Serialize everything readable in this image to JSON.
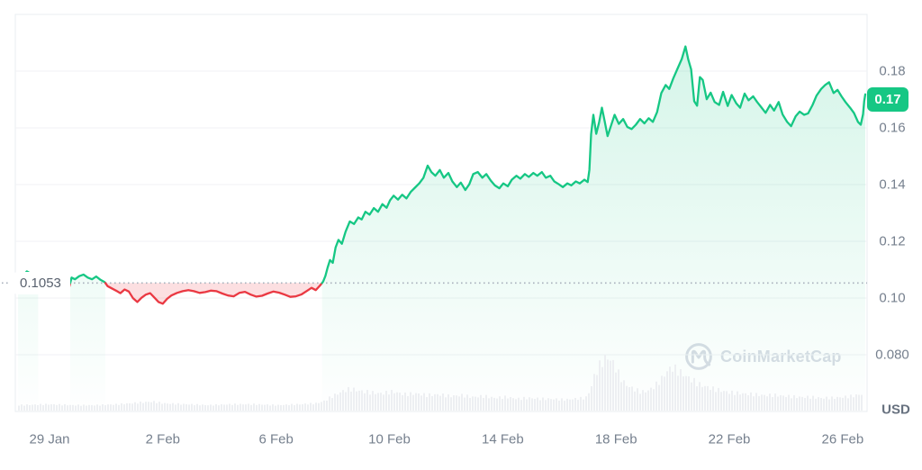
{
  "watermark": "CoinMarketCap",
  "chart_data": {
    "type": "area",
    "title": "",
    "baseline": {
      "value": 0.1053,
      "label": "0.1053"
    },
    "current_price": {
      "value": 0.17,
      "label": "0.17"
    },
    "y_axis": {
      "unit_label": "USD",
      "range": [
        0.06,
        0.2
      ],
      "ticks": [
        {
          "label": "0.18",
          "value": 0.18
        },
        {
          "label": "0.16",
          "value": 0.16
        },
        {
          "label": "0.14",
          "value": 0.14
        },
        {
          "label": "0.12",
          "value": 0.12
        },
        {
          "label": "0.10",
          "value": 0.1
        },
        {
          "label": "0.080",
          "value": 0.08
        }
      ]
    },
    "x_axis": {
      "ticks": [
        {
          "label": "29 Jan",
          "day": 0
        },
        {
          "label": "2 Feb",
          "day": 4
        },
        {
          "label": "6 Feb",
          "day": 8
        },
        {
          "label": "10 Feb",
          "day": 12
        },
        {
          "label": "14 Feb",
          "day": 16
        },
        {
          "label": "18 Feb",
          "day": 20
        },
        {
          "label": "22 Feb",
          "day": 24
        },
        {
          "label": "26 Feb",
          "day": 28
        }
      ]
    },
    "series": [
      {
        "name": "price_usd",
        "points": [
          [
            -1.11,
            0.1053
          ],
          [
            -1.0,
            0.1063
          ],
          [
            -0.9,
            0.1082
          ],
          [
            -0.8,
            0.1094
          ],
          [
            -0.7,
            0.1088
          ],
          [
            -0.6,
            0.1071
          ],
          [
            -0.5,
            0.1058
          ],
          [
            -0.4,
            0.1053
          ],
          [
            -0.2,
            0.1046
          ],
          [
            0.0,
            0.1038
          ],
          [
            0.2,
            0.103
          ],
          [
            0.4,
            0.1025
          ],
          [
            0.6,
            0.1026
          ],
          [
            0.7,
            0.104
          ],
          [
            0.78,
            0.1072
          ],
          [
            0.9,
            0.1066
          ],
          [
            1.05,
            0.1077
          ],
          [
            1.2,
            0.1083
          ],
          [
            1.35,
            0.1072
          ],
          [
            1.5,
            0.1066
          ],
          [
            1.65,
            0.1076
          ],
          [
            1.8,
            0.1064
          ],
          [
            1.95,
            0.1056
          ],
          [
            2.05,
            0.1042
          ],
          [
            2.2,
            0.1034
          ],
          [
            2.35,
            0.1026
          ],
          [
            2.5,
            0.1017
          ],
          [
            2.65,
            0.103
          ],
          [
            2.8,
            0.1023
          ],
          [
            2.95,
            0.0999
          ],
          [
            3.1,
            0.0986
          ],
          [
            3.25,
            0.1001
          ],
          [
            3.4,
            0.1012
          ],
          [
            3.55,
            0.1017
          ],
          [
            3.7,
            0.1002
          ],
          [
            3.85,
            0.0986
          ],
          [
            4.0,
            0.098
          ],
          [
            4.15,
            0.0997
          ],
          [
            4.3,
            0.1009
          ],
          [
            4.5,
            0.1018
          ],
          [
            4.7,
            0.1024
          ],
          [
            4.9,
            0.1028
          ],
          [
            5.1,
            0.1024
          ],
          [
            5.3,
            0.1018
          ],
          [
            5.5,
            0.1021
          ],
          [
            5.7,
            0.1026
          ],
          [
            5.9,
            0.1024
          ],
          [
            6.1,
            0.1016
          ],
          [
            6.3,
            0.1009
          ],
          [
            6.5,
            0.1006
          ],
          [
            6.7,
            0.1018
          ],
          [
            6.9,
            0.1022
          ],
          [
            7.1,
            0.1012
          ],
          [
            7.3,
            0.1005
          ],
          [
            7.5,
            0.1008
          ],
          [
            7.7,
            0.1016
          ],
          [
            7.9,
            0.1023
          ],
          [
            8.1,
            0.1019
          ],
          [
            8.3,
            0.1012
          ],
          [
            8.5,
            0.1004
          ],
          [
            8.7,
            0.1006
          ],
          [
            8.9,
            0.1013
          ],
          [
            9.1,
            0.1026
          ],
          [
            9.25,
            0.1036
          ],
          [
            9.4,
            0.1028
          ],
          [
            9.55,
            0.1044
          ],
          [
            9.66,
            0.1058
          ],
          [
            9.74,
            0.1078
          ],
          [
            9.82,
            0.1108
          ],
          [
            9.9,
            0.1134
          ],
          [
            10.0,
            0.1124
          ],
          [
            10.1,
            0.1178
          ],
          [
            10.2,
            0.1205
          ],
          [
            10.32,
            0.1191
          ],
          [
            10.45,
            0.1234
          ],
          [
            10.6,
            0.127
          ],
          [
            10.75,
            0.1261
          ],
          [
            10.9,
            0.1284
          ],
          [
            11.02,
            0.1277
          ],
          [
            11.15,
            0.1304
          ],
          [
            11.3,
            0.1294
          ],
          [
            11.45,
            0.1317
          ],
          [
            11.6,
            0.1304
          ],
          [
            11.75,
            0.1331
          ],
          [
            11.9,
            0.1318
          ],
          [
            12.02,
            0.1344
          ],
          [
            12.15,
            0.1361
          ],
          [
            12.3,
            0.1347
          ],
          [
            12.45,
            0.1364
          ],
          [
            12.6,
            0.1351
          ],
          [
            12.75,
            0.1374
          ],
          [
            12.9,
            0.1389
          ],
          [
            13.05,
            0.1404
          ],
          [
            13.2,
            0.1424
          ],
          [
            13.35,
            0.1467
          ],
          [
            13.48,
            0.1444
          ],
          [
            13.62,
            0.1431
          ],
          [
            13.78,
            0.1451
          ],
          [
            13.92,
            0.1424
          ],
          [
            14.08,
            0.1441
          ],
          [
            14.22,
            0.1411
          ],
          [
            14.38,
            0.1391
          ],
          [
            14.52,
            0.1407
          ],
          [
            14.68,
            0.1381
          ],
          [
            14.82,
            0.1401
          ],
          [
            14.96,
            0.1437
          ],
          [
            15.12,
            0.1444
          ],
          [
            15.28,
            0.1424
          ],
          [
            15.42,
            0.1437
          ],
          [
            15.58,
            0.1414
          ],
          [
            15.72,
            0.1397
          ],
          [
            15.88,
            0.1387
          ],
          [
            16.02,
            0.1404
          ],
          [
            16.18,
            0.1394
          ],
          [
            16.32,
            0.1417
          ],
          [
            16.48,
            0.1431
          ],
          [
            16.62,
            0.1421
          ],
          [
            16.78,
            0.1437
          ],
          [
            16.92,
            0.1427
          ],
          [
            17.08,
            0.1441
          ],
          [
            17.22,
            0.1431
          ],
          [
            17.38,
            0.1444
          ],
          [
            17.52,
            0.1424
          ],
          [
            17.68,
            0.1431
          ],
          [
            17.82,
            0.1411
          ],
          [
            17.98,
            0.1401
          ],
          [
            18.12,
            0.1391
          ],
          [
            18.28,
            0.1404
          ],
          [
            18.42,
            0.1397
          ],
          [
            18.58,
            0.1411
          ],
          [
            18.72,
            0.1404
          ],
          [
            18.88,
            0.1417
          ],
          [
            19.0,
            0.1409
          ],
          [
            19.06,
            0.1452
          ],
          [
            19.12,
            0.1578
          ],
          [
            19.2,
            0.1646
          ],
          [
            19.3,
            0.1579
          ],
          [
            19.4,
            0.1618
          ],
          [
            19.5,
            0.1671
          ],
          [
            19.6,
            0.1623
          ],
          [
            19.7,
            0.1571
          ],
          [
            19.8,
            0.1601
          ],
          [
            19.95,
            0.1646
          ],
          [
            20.1,
            0.1614
          ],
          [
            20.25,
            0.1631
          ],
          [
            20.4,
            0.1603
          ],
          [
            20.55,
            0.1596
          ],
          [
            20.7,
            0.1611
          ],
          [
            20.85,
            0.1631
          ],
          [
            21.0,
            0.1616
          ],
          [
            21.15,
            0.1634
          ],
          [
            21.3,
            0.1621
          ],
          [
            21.45,
            0.1656
          ],
          [
            21.6,
            0.1723
          ],
          [
            21.75,
            0.1751
          ],
          [
            21.88,
            0.1737
          ],
          [
            22.02,
            0.1774
          ],
          [
            22.18,
            0.1811
          ],
          [
            22.32,
            0.1843
          ],
          [
            22.45,
            0.1887
          ],
          [
            22.55,
            0.1841
          ],
          [
            22.65,
            0.1806
          ],
          [
            22.76,
            0.1694
          ],
          [
            22.86,
            0.1678
          ],
          [
            22.96,
            0.1779
          ],
          [
            23.06,
            0.1769
          ],
          [
            23.2,
            0.1701
          ],
          [
            23.34,
            0.1724
          ],
          [
            23.48,
            0.1691
          ],
          [
            23.64,
            0.1681
          ],
          [
            23.78,
            0.1727
          ],
          [
            23.94,
            0.1677
          ],
          [
            24.08,
            0.1716
          ],
          [
            24.24,
            0.1687
          ],
          [
            24.38,
            0.1671
          ],
          [
            24.54,
            0.1721
          ],
          [
            24.68,
            0.1697
          ],
          [
            24.84,
            0.1711
          ],
          [
            24.98,
            0.1691
          ],
          [
            25.14,
            0.1671
          ],
          [
            25.28,
            0.1653
          ],
          [
            25.44,
            0.1681
          ],
          [
            25.58,
            0.1661
          ],
          [
            25.74,
            0.1691
          ],
          [
            25.88,
            0.1647
          ],
          [
            26.04,
            0.1621
          ],
          [
            26.18,
            0.1606
          ],
          [
            26.34,
            0.1641
          ],
          [
            26.48,
            0.1657
          ],
          [
            26.64,
            0.1646
          ],
          [
            26.78,
            0.1651
          ],
          [
            26.94,
            0.1681
          ],
          [
            27.08,
            0.1714
          ],
          [
            27.24,
            0.1737
          ],
          [
            27.38,
            0.1751
          ],
          [
            27.52,
            0.1761
          ],
          [
            27.68,
            0.1723
          ],
          [
            27.82,
            0.1734
          ],
          [
            27.96,
            0.1711
          ],
          [
            28.1,
            0.1691
          ],
          [
            28.26,
            0.1671
          ],
          [
            28.4,
            0.1652
          ],
          [
            28.54,
            0.1621
          ],
          [
            28.64,
            0.1611
          ],
          [
            28.72,
            0.1648
          ],
          [
            28.76,
            0.1694
          ],
          [
            28.8,
            0.1718
          ]
        ]
      }
    ],
    "volume_profile": [
      [
        -1.11,
        6
      ],
      [
        0,
        7
      ],
      [
        0.8,
        6
      ],
      [
        1.6,
        6
      ],
      [
        2.4,
        7
      ],
      [
        3.2,
        9
      ],
      [
        3.6,
        10
      ],
      [
        4,
        8
      ],
      [
        4.8,
        7
      ],
      [
        5.6,
        6
      ],
      [
        6.4,
        7
      ],
      [
        7.2,
        7
      ],
      [
        8,
        6
      ],
      [
        8.8,
        7
      ],
      [
        9.4,
        8
      ],
      [
        9.7,
        11
      ],
      [
        9.9,
        15
      ],
      [
        10.1,
        18
      ],
      [
        10.35,
        22
      ],
      [
        10.6,
        24
      ],
      [
        10.9,
        22
      ],
      [
        11.3,
        20
      ],
      [
        11.7,
        19
      ],
      [
        12.1,
        21
      ],
      [
        12.5,
        18
      ],
      [
        12.9,
        19
      ],
      [
        13.3,
        17
      ],
      [
        13.7,
        18
      ],
      [
        14.1,
        16
      ],
      [
        14.5,
        17
      ],
      [
        14.9,
        15
      ],
      [
        15.3,
        16
      ],
      [
        15.7,
        14
      ],
      [
        16.1,
        15
      ],
      [
        16.5,
        13
      ],
      [
        16.9,
        14
      ],
      [
        17.3,
        13
      ],
      [
        17.7,
        13
      ],
      [
        18.1,
        12
      ],
      [
        18.5,
        13
      ],
      [
        18.9,
        14
      ],
      [
        19.05,
        22
      ],
      [
        19.2,
        38
      ],
      [
        19.35,
        48
      ],
      [
        19.5,
        55
      ],
      [
        19.65,
        59
      ],
      [
        19.8,
        56
      ],
      [
        19.95,
        48
      ],
      [
        20.1,
        38
      ],
      [
        20.25,
        31
      ],
      [
        20.4,
        27
      ],
      [
        20.6,
        24
      ],
      [
        20.8,
        21
      ],
      [
        21.0,
        21
      ],
      [
        21.2,
        24
      ],
      [
        21.4,
        29
      ],
      [
        21.6,
        36
      ],
      [
        21.8,
        45
      ],
      [
        21.95,
        48
      ],
      [
        22.1,
        45
      ],
      [
        22.3,
        41
      ],
      [
        22.5,
        37
      ],
      [
        22.7,
        33
      ],
      [
        22.9,
        29
      ],
      [
        23.1,
        27
      ],
      [
        23.4,
        24
      ],
      [
        23.7,
        22
      ],
      [
        24.0,
        20
      ],
      [
        24.4,
        19
      ],
      [
        24.8,
        18
      ],
      [
        25.2,
        17
      ],
      [
        25.6,
        17
      ],
      [
        26.0,
        16
      ],
      [
        26.4,
        15
      ],
      [
        26.8,
        15
      ],
      [
        27.2,
        14
      ],
      [
        27.6,
        14
      ],
      [
        28.0,
        15
      ],
      [
        28.3,
        16
      ],
      [
        28.6,
        18
      ],
      [
        28.8,
        20
      ]
    ],
    "colors": {
      "up": "#16c784",
      "down": "#ea3943",
      "up_fill_top": "rgba(22,199,132,0.18)",
      "up_fill_bottom": "rgba(22,199,132,0)",
      "down_fill": "rgba(234,57,67,0.16)",
      "grid": "#f0f2f5",
      "frame": "#e9edf0",
      "baseline_dots": "#a9b2bd",
      "volume": "#edeff2",
      "axis_text": "#76808e",
      "badge_bg": "#16c784",
      "badge_text": "#ffffff",
      "watermark": "#d8dde5"
    }
  }
}
